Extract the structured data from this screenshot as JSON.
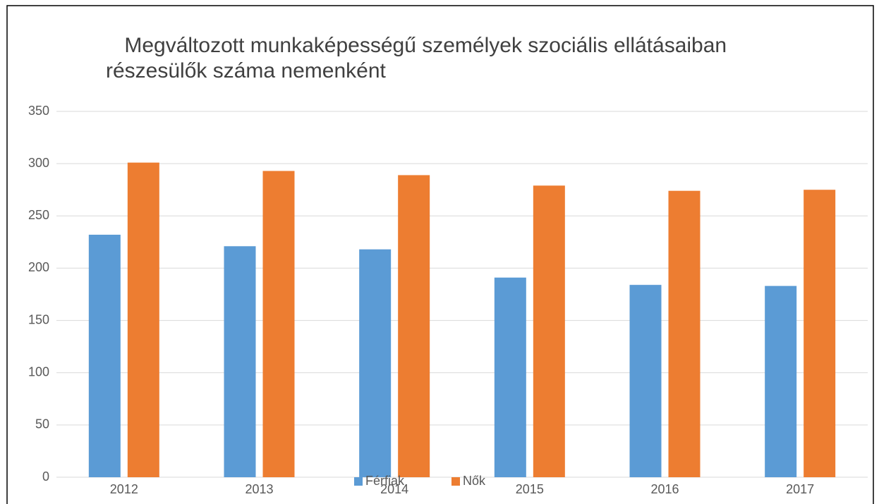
{
  "chart_data": {
    "type": "bar",
    "title": [
      " Megváltozott munkaképességű személyek szociális ellátásaiban",
      "részesülők száma nemenként"
    ],
    "categories": [
      "2012",
      "2013",
      "2014",
      "2015",
      "2016",
      "2017"
    ],
    "series": [
      {
        "name": "Férfiak",
        "color": "#5b9bd5",
        "values": [
          232,
          221,
          218,
          191,
          184,
          183
        ]
      },
      {
        "name": "Nők",
        "color": "#ed7d31",
        "values": [
          301,
          293,
          289,
          279,
          274,
          275
        ]
      }
    ],
    "ylim": [
      0,
      350
    ],
    "yticks": [
      0,
      50,
      100,
      150,
      200,
      250,
      300,
      350
    ],
    "grid": true,
    "legend": "bottom"
  }
}
